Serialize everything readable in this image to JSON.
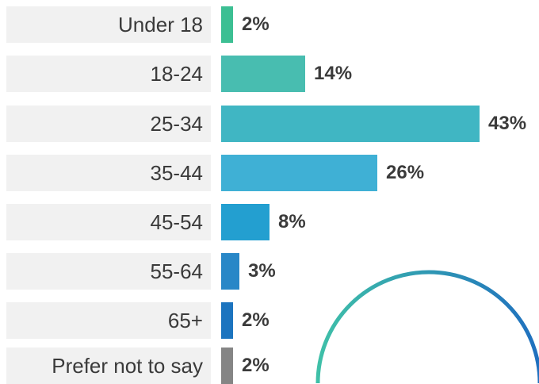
{
  "chart_data": {
    "type": "bar",
    "orientation": "horizontal",
    "categories": [
      "Under 18",
      "18-24",
      "25-34",
      "35-44",
      "45-54",
      "55-64",
      "65+",
      "Prefer not to say"
    ],
    "values": [
      2,
      14,
      43,
      26,
      8,
      3,
      2,
      2
    ],
    "value_labels": [
      "2%",
      "14%",
      "43%",
      "26%",
      "8%",
      "3%",
      "2%",
      "2%"
    ],
    "unit": "%",
    "xlim": [
      0,
      43
    ],
    "grid": false,
    "legend": "none",
    "title": "",
    "xlabel": "",
    "ylabel": ""
  },
  "colors": {
    "bars": [
      "#3cbf93",
      "#48bdb0",
      "#40b6c3",
      "#3fb0d5",
      "#239fd0",
      "#2887c7",
      "#1c74bf",
      "#858585"
    ],
    "label_background": "#f1f1f1",
    "decoration_arc_start": "#3fc0a8",
    "decoration_arc_end": "#1f6fbf"
  }
}
